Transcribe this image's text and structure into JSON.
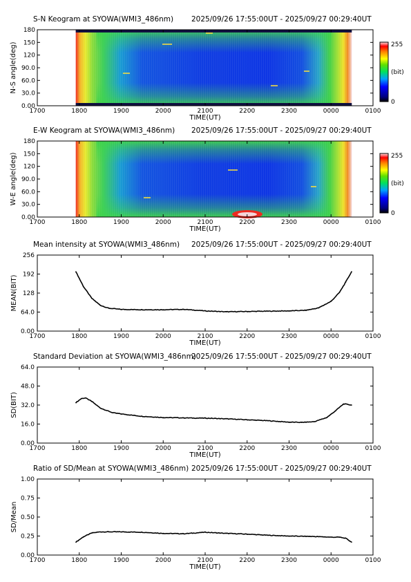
{
  "x_axis": {
    "ticks": [
      "1700",
      "1800",
      "1900",
      "2000",
      "2100",
      "2200",
      "2300",
      "0000",
      "0100"
    ],
    "label": "TIME(UT)",
    "range_hours": [
      17.0,
      25.0
    ],
    "data_range_hours": [
      17.9167,
      24.4944
    ]
  },
  "keograms": [
    {
      "title": "S-N Keogram at SYOWA(WMI3_486nm)",
      "time_range": "2025/09/26 17:55:00UT - 2025/09/27 00:29:40UT",
      "ylabel": "N-S angle(deg)",
      "yticks": [
        "180",
        "150",
        "120",
        "90.0",
        "60.0",
        "30.0",
        "0.00"
      ],
      "colorbar": {
        "max": "255",
        "unit": "(bit)",
        "min": "0"
      }
    },
    {
      "title": "E-W Keogram at SYOWA(WMI3_486nm)",
      "time_range": "2025/09/26 17:55:00UT - 2025/09/27 00:29:40UT",
      "ylabel": "W-E angle(deg)",
      "yticks": [
        "180",
        "150",
        "120",
        "90.0",
        "60.0",
        "30.0",
        "0.00"
      ],
      "colorbar": {
        "max": "255",
        "unit": "(bit)",
        "min": "0"
      }
    }
  ],
  "colors": {
    "line": "#000000",
    "low_blue": "#1040e0",
    "green": "#3cd24a",
    "yellow": "#f2ec2a",
    "red": "#e0241e"
  },
  "chart_data": [
    {
      "type": "line",
      "title": "Mean intensity at SYOWA(WMI3_486nm)",
      "time_range": "2025/09/26 17:55:00UT - 2025/09/27 00:29:40UT",
      "xlabel": "TIME(UT)",
      "ylabel": "MEAN(BIT)",
      "yticks": [
        "256",
        "192",
        "128",
        "64.0",
        "0.00"
      ],
      "ylim": [
        0,
        256
      ],
      "x": [
        17.92,
        18.1,
        18.3,
        18.5,
        18.7,
        19.0,
        19.5,
        20.0,
        20.5,
        21.0,
        21.5,
        22.0,
        22.5,
        23.0,
        23.4,
        23.7,
        24.0,
        24.2,
        24.35,
        24.49
      ],
      "y": [
        200,
        150,
        110,
        87,
        77,
        73,
        72,
        72,
        73,
        68,
        65,
        66,
        67,
        68,
        70,
        78,
        100,
        130,
        165,
        200
      ]
    },
    {
      "type": "line",
      "title": "Standard Deviation at SYOWA(WMI3_486nm)",
      "time_range": "2025/09/26 17:55:00UT - 2025/09/27 00:29:40UT",
      "xlabel": "TIME(UT)",
      "ylabel": "SD(BIT)",
      "yticks": [
        "64.0",
        "48.0",
        "32.0",
        "16.0",
        "0.00"
      ],
      "ylim": [
        0,
        64
      ],
      "x": [
        17.92,
        18.05,
        18.15,
        18.3,
        18.5,
        18.8,
        19.0,
        19.5,
        20.0,
        20.5,
        20.8,
        21.0,
        21.5,
        22.0,
        22.5,
        23.0,
        23.3,
        23.6,
        23.9,
        24.1,
        24.3,
        24.49
      ],
      "y": [
        34,
        37.5,
        38,
        35,
        29.5,
        25.5,
        24.5,
        22.5,
        21.5,
        21.2,
        21,
        21,
        20.4,
        19.6,
        18.8,
        17.6,
        17.4,
        18,
        21.5,
        27,
        33,
        32
      ]
    },
    {
      "type": "line",
      "title": "Ratio of SD/Mean at SYOWA(WMI3_486nm)",
      "time_range": "2025/09/26 17:55:00UT - 2025/09/27 00:29:40UT",
      "xlabel": "TIME(UT)",
      "ylabel": "SD/Mean",
      "yticks": [
        "1.00",
        "0.75",
        "0.50",
        "0.25",
        "0.00"
      ],
      "ylim": [
        0,
        1
      ],
      "x": [
        17.92,
        18.1,
        18.3,
        18.5,
        18.7,
        19.0,
        19.5,
        20.0,
        20.5,
        21.0,
        21.5,
        22.0,
        22.5,
        23.0,
        23.5,
        23.8,
        24.0,
        24.2,
        24.35,
        24.49
      ],
      "y": [
        0.17,
        0.24,
        0.29,
        0.305,
        0.305,
        0.305,
        0.3,
        0.285,
        0.28,
        0.3,
        0.285,
        0.275,
        0.26,
        0.25,
        0.245,
        0.24,
        0.235,
        0.235,
        0.22,
        0.17
      ]
    }
  ]
}
